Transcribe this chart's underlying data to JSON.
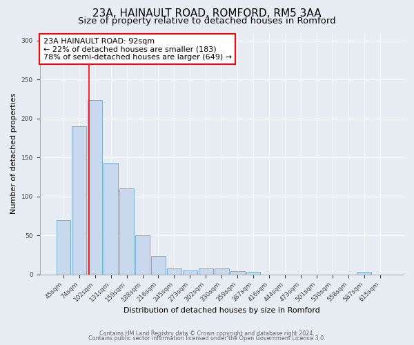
{
  "title1": "23A, HAINAULT ROAD, ROMFORD, RM5 3AA",
  "title2": "Size of property relative to detached houses in Romford",
  "xlabel": "Distribution of detached houses by size in Romford",
  "ylabel": "Number of detached properties",
  "bar_labels": [
    "45sqm",
    "74sqm",
    "102sqm",
    "131sqm",
    "159sqm",
    "188sqm",
    "216sqm",
    "245sqm",
    "273sqm",
    "302sqm",
    "330sqm",
    "359sqm",
    "387sqm",
    "416sqm",
    "444sqm",
    "473sqm",
    "501sqm",
    "530sqm",
    "558sqm",
    "587sqm",
    "615sqm"
  ],
  "bar_values": [
    70,
    190,
    224,
    143,
    110,
    50,
    24,
    8,
    5,
    8,
    8,
    4,
    3,
    0,
    0,
    0,
    0,
    0,
    0,
    3,
    0
  ],
  "bar_color": "#c8d9ee",
  "bar_edge_color": "#7aafd4",
  "background_color": "#e8edf4",
  "red_line_x": 1.64,
  "annotation_text": "23A HAINAULT ROAD: 92sqm\n← 22% of detached houses are smaller (183)\n78% of semi-detached houses are larger (649) →",
  "annotation_box_color": "white",
  "annotation_box_edge": "red",
  "footer_text1": "Contains HM Land Registry data © Crown copyright and database right 2024.",
  "footer_text2": "Contains public sector information licensed under the Open Government Licence 3.0.",
  "ylim": [
    0,
    310
  ],
  "title1_fontsize": 11,
  "title2_fontsize": 9.5,
  "annot_fontsize": 8,
  "ylabel_fontsize": 8,
  "xlabel_fontsize": 8,
  "tick_fontsize": 6.5,
  "footer_fontsize": 5.8
}
